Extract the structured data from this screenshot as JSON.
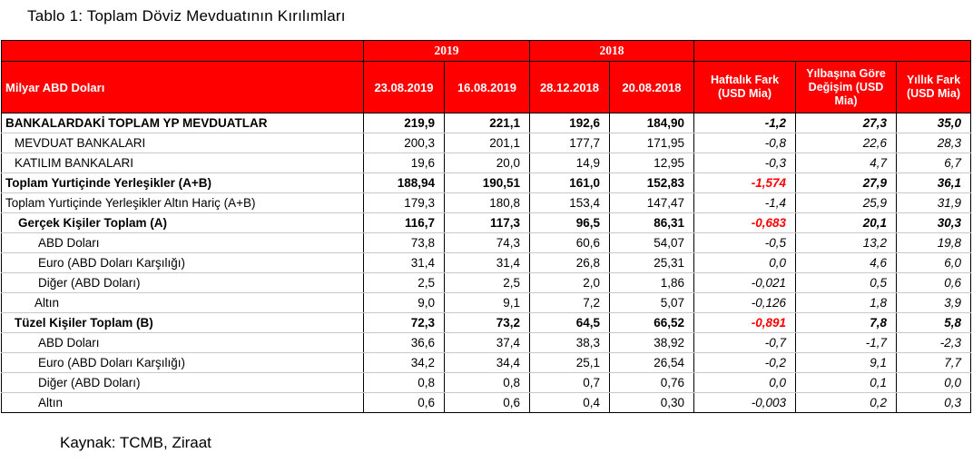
{
  "title": "Tablo 1: Toplam Döviz Mevduatının Kırılımları",
  "source": "Kaynak: TCMB, Ziraat",
  "header": {
    "year1": "2019",
    "year2": "2018",
    "row_label": "Milyar ABD Doları",
    "dates": [
      "23.08.2019",
      "16.08.2019",
      "28.12.2018",
      "20.08.2018"
    ],
    "weekly": "Haftalık Fark (USD Mia)",
    "ytd": "Yılbaşına Göre Değişim (USD Mia)",
    "yearly": "Yıllık Fark (USD Mia)"
  },
  "rows": [
    {
      "label": "BANKALARDAKİ TOPLAM YP MEVDUATLAR",
      "v1": "219,9",
      "v2": "221,1",
      "v3": "192,6",
      "v4": "184,90",
      "weekly": "-1,2",
      "ytd": "27,3",
      "yearly": "35,0"
    },
    {
      "label": "MEVDUAT BANKALARI",
      "v1": "200,3",
      "v2": "201,1",
      "v3": "177,7",
      "v4": "171,95",
      "weekly": "-0,8",
      "ytd": "22,6",
      "yearly": "28,3"
    },
    {
      "label": "KATILIM BANKALARI",
      "v1": "19,6",
      "v2": "20,0",
      "v3": "14,9",
      "v4": "12,95",
      "weekly": "-0,3",
      "ytd": "4,7",
      "yearly": "6,7"
    },
    {
      "label": "Toplam Yurtiçinde Yerleşikler (A+B)",
      "v1": "188,94",
      "v2": "190,51",
      "v3": "161,0",
      "v4": "152,83",
      "weekly": "-1,574",
      "ytd": "27,9",
      "yearly": "36,1"
    },
    {
      "label": "Toplam Yurtiçinde Yerleşikler Altın Hariç (A+B)",
      "v1": "179,3",
      "v2": "180,8",
      "v3": "153,4",
      "v4": "147,47",
      "weekly": "-1,4",
      "ytd": "25,9",
      "yearly": "31,9"
    },
    {
      "label": "Gerçek Kişiler Toplam (A)",
      "v1": "116,7",
      "v2": "117,3",
      "v3": "96,5",
      "v4": "86,31",
      "weekly": "-0,683",
      "ytd": "20,1",
      "yearly": "30,3"
    },
    {
      "label": "ABD Doları",
      "v1": "73,8",
      "v2": "74,3",
      "v3": "60,6",
      "v4": "54,07",
      "weekly": "-0,5",
      "ytd": "13,2",
      "yearly": "19,8"
    },
    {
      "label": "Euro (ABD Doları Karşılığı)",
      "v1": "31,4",
      "v2": "31,4",
      "v3": "26,8",
      "v4": "25,31",
      "weekly": "0,0",
      "ytd": "4,6",
      "yearly": "6,0"
    },
    {
      "label": "Diğer (ABD Doları)",
      "v1": "2,5",
      "v2": "2,5",
      "v3": "2,0",
      "v4": "1,86",
      "weekly": "-0,021",
      "ytd": "0,5",
      "yearly": "0,6"
    },
    {
      "label": "Altın",
      "v1": "9,0",
      "v2": "9,1",
      "v3": "7,2",
      "v4": "5,07",
      "weekly": "-0,126",
      "ytd": "1,8",
      "yearly": "3,9"
    },
    {
      "label": "Tüzel Kişiler Toplam (B)",
      "v1": "72,3",
      "v2": "73,2",
      "v3": "64,5",
      "v4": "66,52",
      "weekly": "-0,891",
      "ytd": "7,8",
      "yearly": "5,8"
    },
    {
      "label": "ABD Doları",
      "v1": "36,6",
      "v2": "37,4",
      "v3": "38,3",
      "v4": "38,92",
      "weekly": "-0,7",
      "ytd": "-1,7",
      "yearly": "-2,3"
    },
    {
      "label": "Euro (ABD Doları Karşılığı)",
      "v1": "34,2",
      "v2": "34,4",
      "v3": "25,1",
      "v4": "26,54",
      "weekly": "-0,2",
      "ytd": "9,1",
      "yearly": "7,7"
    },
    {
      "label": "Diğer (ABD Doları)",
      "v1": "0,8",
      "v2": "0,8",
      "v3": "0,7",
      "v4": "0,76",
      "weekly": "0,0",
      "ytd": "0,1",
      "yearly": "0,0"
    },
    {
      "label": "Altın",
      "v1": "0,6",
      "v2": "0,6",
      "v3": "0,4",
      "v4": "0,30",
      "weekly": "-0,003",
      "ytd": "0,2",
      "yearly": "0,3"
    }
  ],
  "colors": {
    "header_bg": "#ff0000",
    "highlight": "#ff0000"
  }
}
